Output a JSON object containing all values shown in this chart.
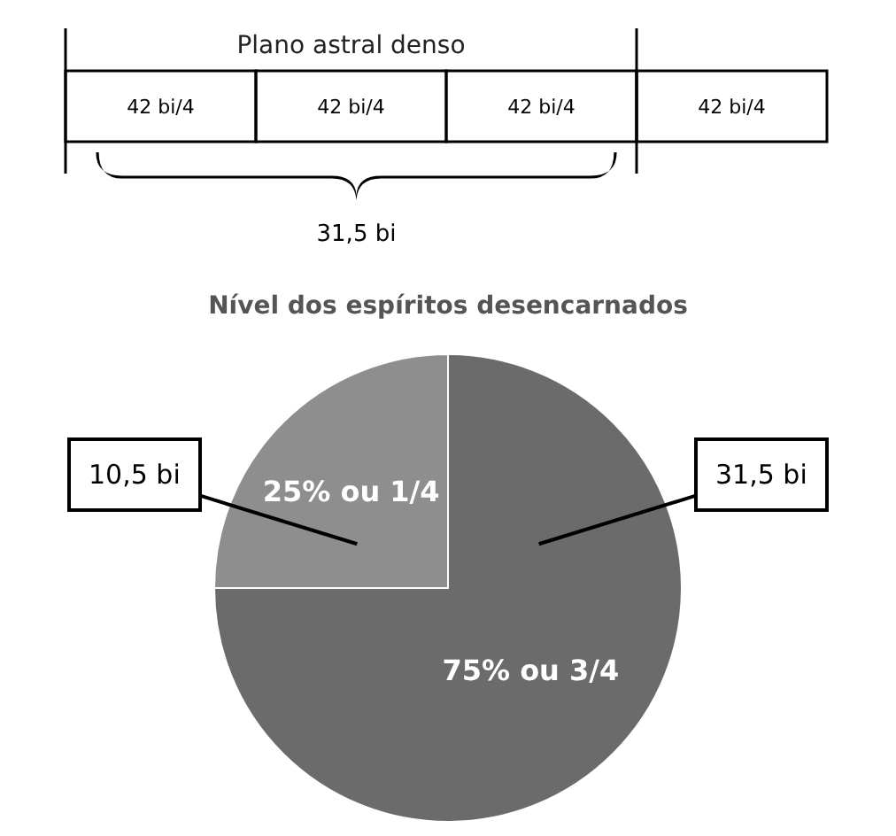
{
  "chart_data": [
    {
      "type": "other",
      "title": "Plano astral denso",
      "annotations": [
        "42 bi/4",
        "42 bi/4",
        "42 bi/4",
        "42 bi/4",
        "31,5 bi"
      ]
    },
    {
      "type": "pie",
      "title": "Nível dos espíritos desencarnados",
      "categories": [
        "75% ou 3/4",
        "25% ou 1/4"
      ],
      "values": [
        75,
        25
      ],
      "colors": [
        "#6b6b6b",
        "#8e8e8e"
      ],
      "annotations": [
        "31,5 bi",
        "10,5 bi"
      ],
      "legend": false
    }
  ]
}
